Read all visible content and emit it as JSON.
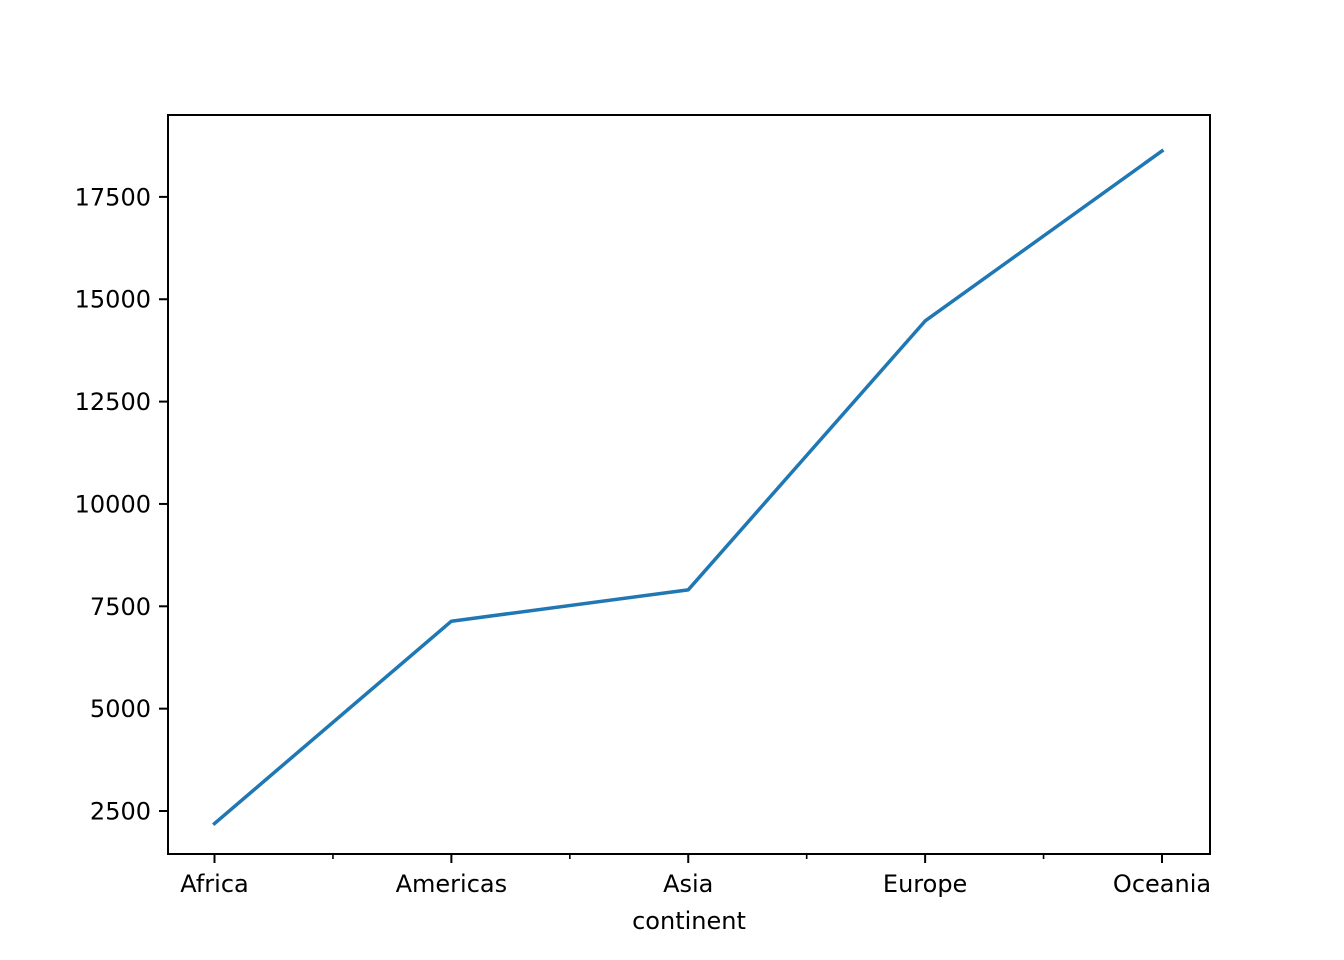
{
  "chart_data": {
    "type": "line",
    "categories": [
      "Africa",
      "Americas",
      "Asia",
      "Europe",
      "Oceania"
    ],
    "series": [
      {
        "values": [
          2194,
          7136,
          7902,
          14469,
          18622
        ],
        "color": "#1f77b4"
      }
    ],
    "xlabel": "continent",
    "ylabel": "",
    "title": "",
    "ylim": [
      1450,
      19500
    ],
    "yticks": [
      2500,
      5000,
      7500,
      10000,
      12500,
      15000,
      17500
    ],
    "yticklabels": [
      "2500",
      "5000",
      "7500",
      "10000",
      "12500",
      "15000",
      "17500"
    ],
    "minor_xticks": true,
    "grid": false,
    "legend": "none"
  }
}
